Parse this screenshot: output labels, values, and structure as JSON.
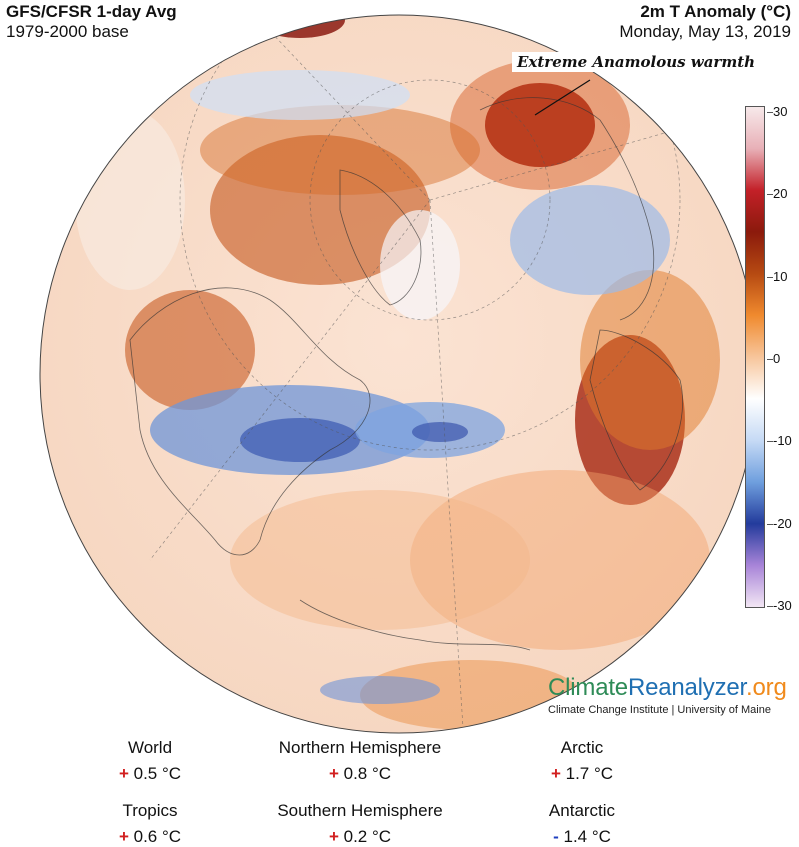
{
  "header": {
    "title_left": "GFS/CFSR 1-day Avg",
    "base_left": "1979-2000 base",
    "title_right": "2m T Anomaly (°C)",
    "date_right": "Monday, May 13, 2019"
  },
  "annotation": "Extreme Anamolous warmth",
  "colorbar": {
    "ticks": [
      "30",
      "20",
      "10",
      "0",
      "-10",
      "-20",
      "-30"
    ],
    "colors": [
      "#f7e9ea",
      "#e8b0b7",
      "#c32028",
      "#8b1a0c",
      "#b64a12",
      "#f08a2e",
      "#f7c59b",
      "#ffffff",
      "#c6daf5",
      "#6f9fde",
      "#233b9c",
      "#a884d8",
      "#f2e6f4"
    ]
  },
  "logo": {
    "part1": "Climate",
    "part2": "Reanalyzer",
    "part3": ".org",
    "credit": "Climate Change Institute | University of Maine"
  },
  "stats": [
    {
      "name": "World",
      "sign": "+",
      "value": "0.5 °C"
    },
    {
      "name": "Northern Hemisphere",
      "sign": "+",
      "value": "0.8 °C"
    },
    {
      "name": "Arctic",
      "sign": "+",
      "value": "1.7 °C"
    },
    {
      "name": "Tropics",
      "sign": "+",
      "value": "0.6 °C"
    },
    {
      "name": "Southern Hemisphere",
      "sign": "+",
      "value": "0.2 °C"
    },
    {
      "name": "Antarctic",
      "sign": "-",
      "value": "1.4 °C"
    }
  ]
}
